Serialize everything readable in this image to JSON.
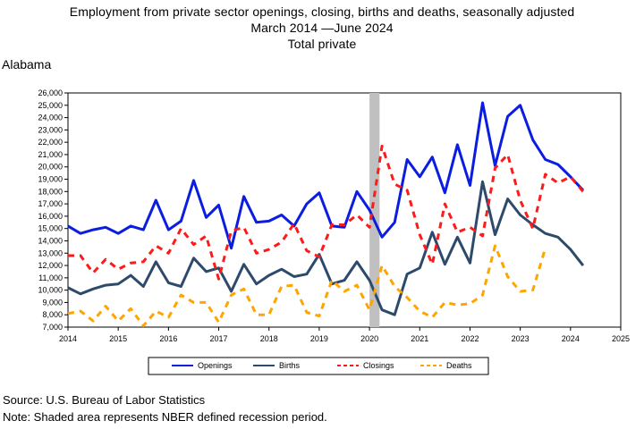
{
  "title": {
    "line1": "Employment from private sector openings, closing, births and deaths, seasonally adjusted",
    "line2": "March 2014 —June 2024",
    "line3": "Total private"
  },
  "region": "Alabama",
  "footer": {
    "source": "Source: U.S. Bureau of Labor Statistics",
    "note": "Note: Shaded area represents NBER defined recession period."
  },
  "chart_data": {
    "type": "line",
    "x_ticks": [
      "2014",
      "2015",
      "2016",
      "2017",
      "2018",
      "2019",
      "2020",
      "2021",
      "2022",
      "2023",
      "2024",
      "2025"
    ],
    "xlim": [
      2014,
      2025
    ],
    "ylim": [
      7000,
      26000
    ],
    "y_ticks": [
      "7,000",
      "8,000",
      "9,000",
      "10,000",
      "11,000",
      "12,000",
      "13,000",
      "14,000",
      "15,000",
      "16,000",
      "17,000",
      "18,000",
      "19,000",
      "20,000",
      "21,000",
      "22,000",
      "23,000",
      "24,000",
      "25,000",
      "26,000"
    ],
    "y_tick_values": [
      7000,
      8000,
      9000,
      10000,
      11000,
      12000,
      13000,
      14000,
      15000,
      16000,
      17000,
      18000,
      19000,
      20000,
      21000,
      22000,
      23000,
      24000,
      25000,
      26000
    ],
    "recession": [
      2020.0,
      2020.2
    ],
    "legend_position": "bottom",
    "series": [
      {
        "name": "Openings",
        "color": "#0a1de0",
        "dash": "solid",
        "x": [
          2014.0,
          2014.25,
          2014.5,
          2014.75,
          2015.0,
          2015.25,
          2015.5,
          2015.75,
          2016.0,
          2016.25,
          2016.5,
          2016.75,
          2017.0,
          2017.25,
          2017.5,
          2017.75,
          2018.0,
          2018.25,
          2018.5,
          2018.75,
          2019.0,
          2019.25,
          2019.5,
          2019.75,
          2020.0,
          2020.25,
          2020.5,
          2020.75,
          2021.0,
          2021.25,
          2021.5,
          2021.75,
          2022.0,
          2022.25,
          2022.5,
          2022.75,
          2023.0,
          2023.25,
          2023.5,
          2023.75,
          2024.0,
          2024.25
        ],
        "values": [
          15200,
          14600,
          14900,
          15100,
          14600,
          15200,
          14900,
          17300,
          14900,
          15600,
          18900,
          15900,
          16900,
          13400,
          17600,
          15500,
          15600,
          16100,
          15200,
          17000,
          17900,
          15200,
          15100,
          18000,
          16500,
          14300,
          15500,
          20600,
          19200,
          20800,
          17900,
          21800,
          18500,
          25200,
          20100,
          24100,
          25000,
          22200,
          20600,
          20200,
          19200,
          18100
        ]
      },
      {
        "name": "Births",
        "color": "#2e4a6b",
        "dash": "solid",
        "x": [
          2014.0,
          2014.25,
          2014.5,
          2014.75,
          2015.0,
          2015.25,
          2015.5,
          2015.75,
          2016.0,
          2016.25,
          2016.5,
          2016.75,
          2017.0,
          2017.25,
          2017.5,
          2017.75,
          2018.0,
          2018.25,
          2018.5,
          2018.75,
          2019.0,
          2019.25,
          2019.5,
          2019.75,
          2020.0,
          2020.25,
          2020.5,
          2020.75,
          2021.0,
          2021.25,
          2021.5,
          2021.75,
          2022.0,
          2022.25,
          2022.5,
          2022.75,
          2023.0,
          2023.25,
          2023.5,
          2023.75,
          2024.0,
          2024.25
        ],
        "values": [
          10200,
          9700,
          10100,
          10400,
          10500,
          11200,
          10300,
          12300,
          10600,
          10300,
          12600,
          11500,
          11800,
          9900,
          12100,
          10500,
          11200,
          11700,
          11100,
          11300,
          12900,
          10500,
          10800,
          12300,
          10800,
          8400,
          8000,
          11300,
          11800,
          14700,
          12100,
          14300,
          12200,
          18800,
          14500,
          17400,
          16100,
          15300,
          14600,
          14300,
          13300,
          12000
        ]
      },
      {
        "name": "Closings",
        "color": "#ff1a1a",
        "dash": "dash",
        "x": [
          2014.0,
          2014.25,
          2014.5,
          2014.75,
          2015.0,
          2015.25,
          2015.5,
          2015.75,
          2016.0,
          2016.25,
          2016.5,
          2016.75,
          2017.0,
          2017.25,
          2017.5,
          2017.75,
          2018.0,
          2018.25,
          2018.5,
          2018.75,
          2019.0,
          2019.25,
          2019.5,
          2019.75,
          2020.0,
          2020.25,
          2020.5,
          2020.75,
          2021.0,
          2021.25,
          2021.5,
          2021.75,
          2022.0,
          2022.25,
          2022.5,
          2022.75,
          2023.0,
          2023.25,
          2023.5,
          2023.75,
          2024.0,
          2024.25
        ],
        "values": [
          12800,
          12800,
          11400,
          12500,
          11700,
          12200,
          12300,
          13600,
          13000,
          15000,
          13700,
          14400,
          10900,
          14800,
          15100,
          13000,
          13300,
          13900,
          15400,
          13200,
          12700,
          15300,
          15300,
          16100,
          15100,
          21700,
          18600,
          18100,
          14500,
          12100,
          17000,
          14700,
          15100,
          14400,
          19900,
          21000,
          17300,
          15000,
          19400,
          18700,
          19200,
          18000
        ]
      },
      {
        "name": "Deaths",
        "color": "#ffa500",
        "dash": "dash",
        "x": [
          2014.0,
          2014.25,
          2014.5,
          2014.75,
          2015.0,
          2015.25,
          2015.5,
          2015.75,
          2016.0,
          2016.25,
          2016.5,
          2016.75,
          2017.0,
          2017.25,
          2017.5,
          2017.75,
          2018.0,
          2018.25,
          2018.5,
          2018.75,
          2019.0,
          2019.25,
          2019.5,
          2019.75,
          2020.0,
          2020.25,
          2020.5,
          2020.75,
          2021.0,
          2021.25,
          2021.5,
          2021.75,
          2022.0,
          2022.25,
          2022.5,
          2022.75,
          2023.0,
          2023.25,
          2023.5
        ],
        "values": [
          8100,
          8300,
          7500,
          8700,
          7500,
          8500,
          7100,
          8300,
          7800,
          9600,
          9000,
          9000,
          7400,
          9600,
          10100,
          8000,
          8000,
          10300,
          10400,
          8200,
          7900,
          10800,
          9900,
          10400,
          8400,
          12000,
          10300,
          9400,
          8300,
          7800,
          9000,
          8800,
          8900,
          9600,
          13600,
          11100,
          9900,
          10000,
          13400
        ]
      }
    ]
  }
}
